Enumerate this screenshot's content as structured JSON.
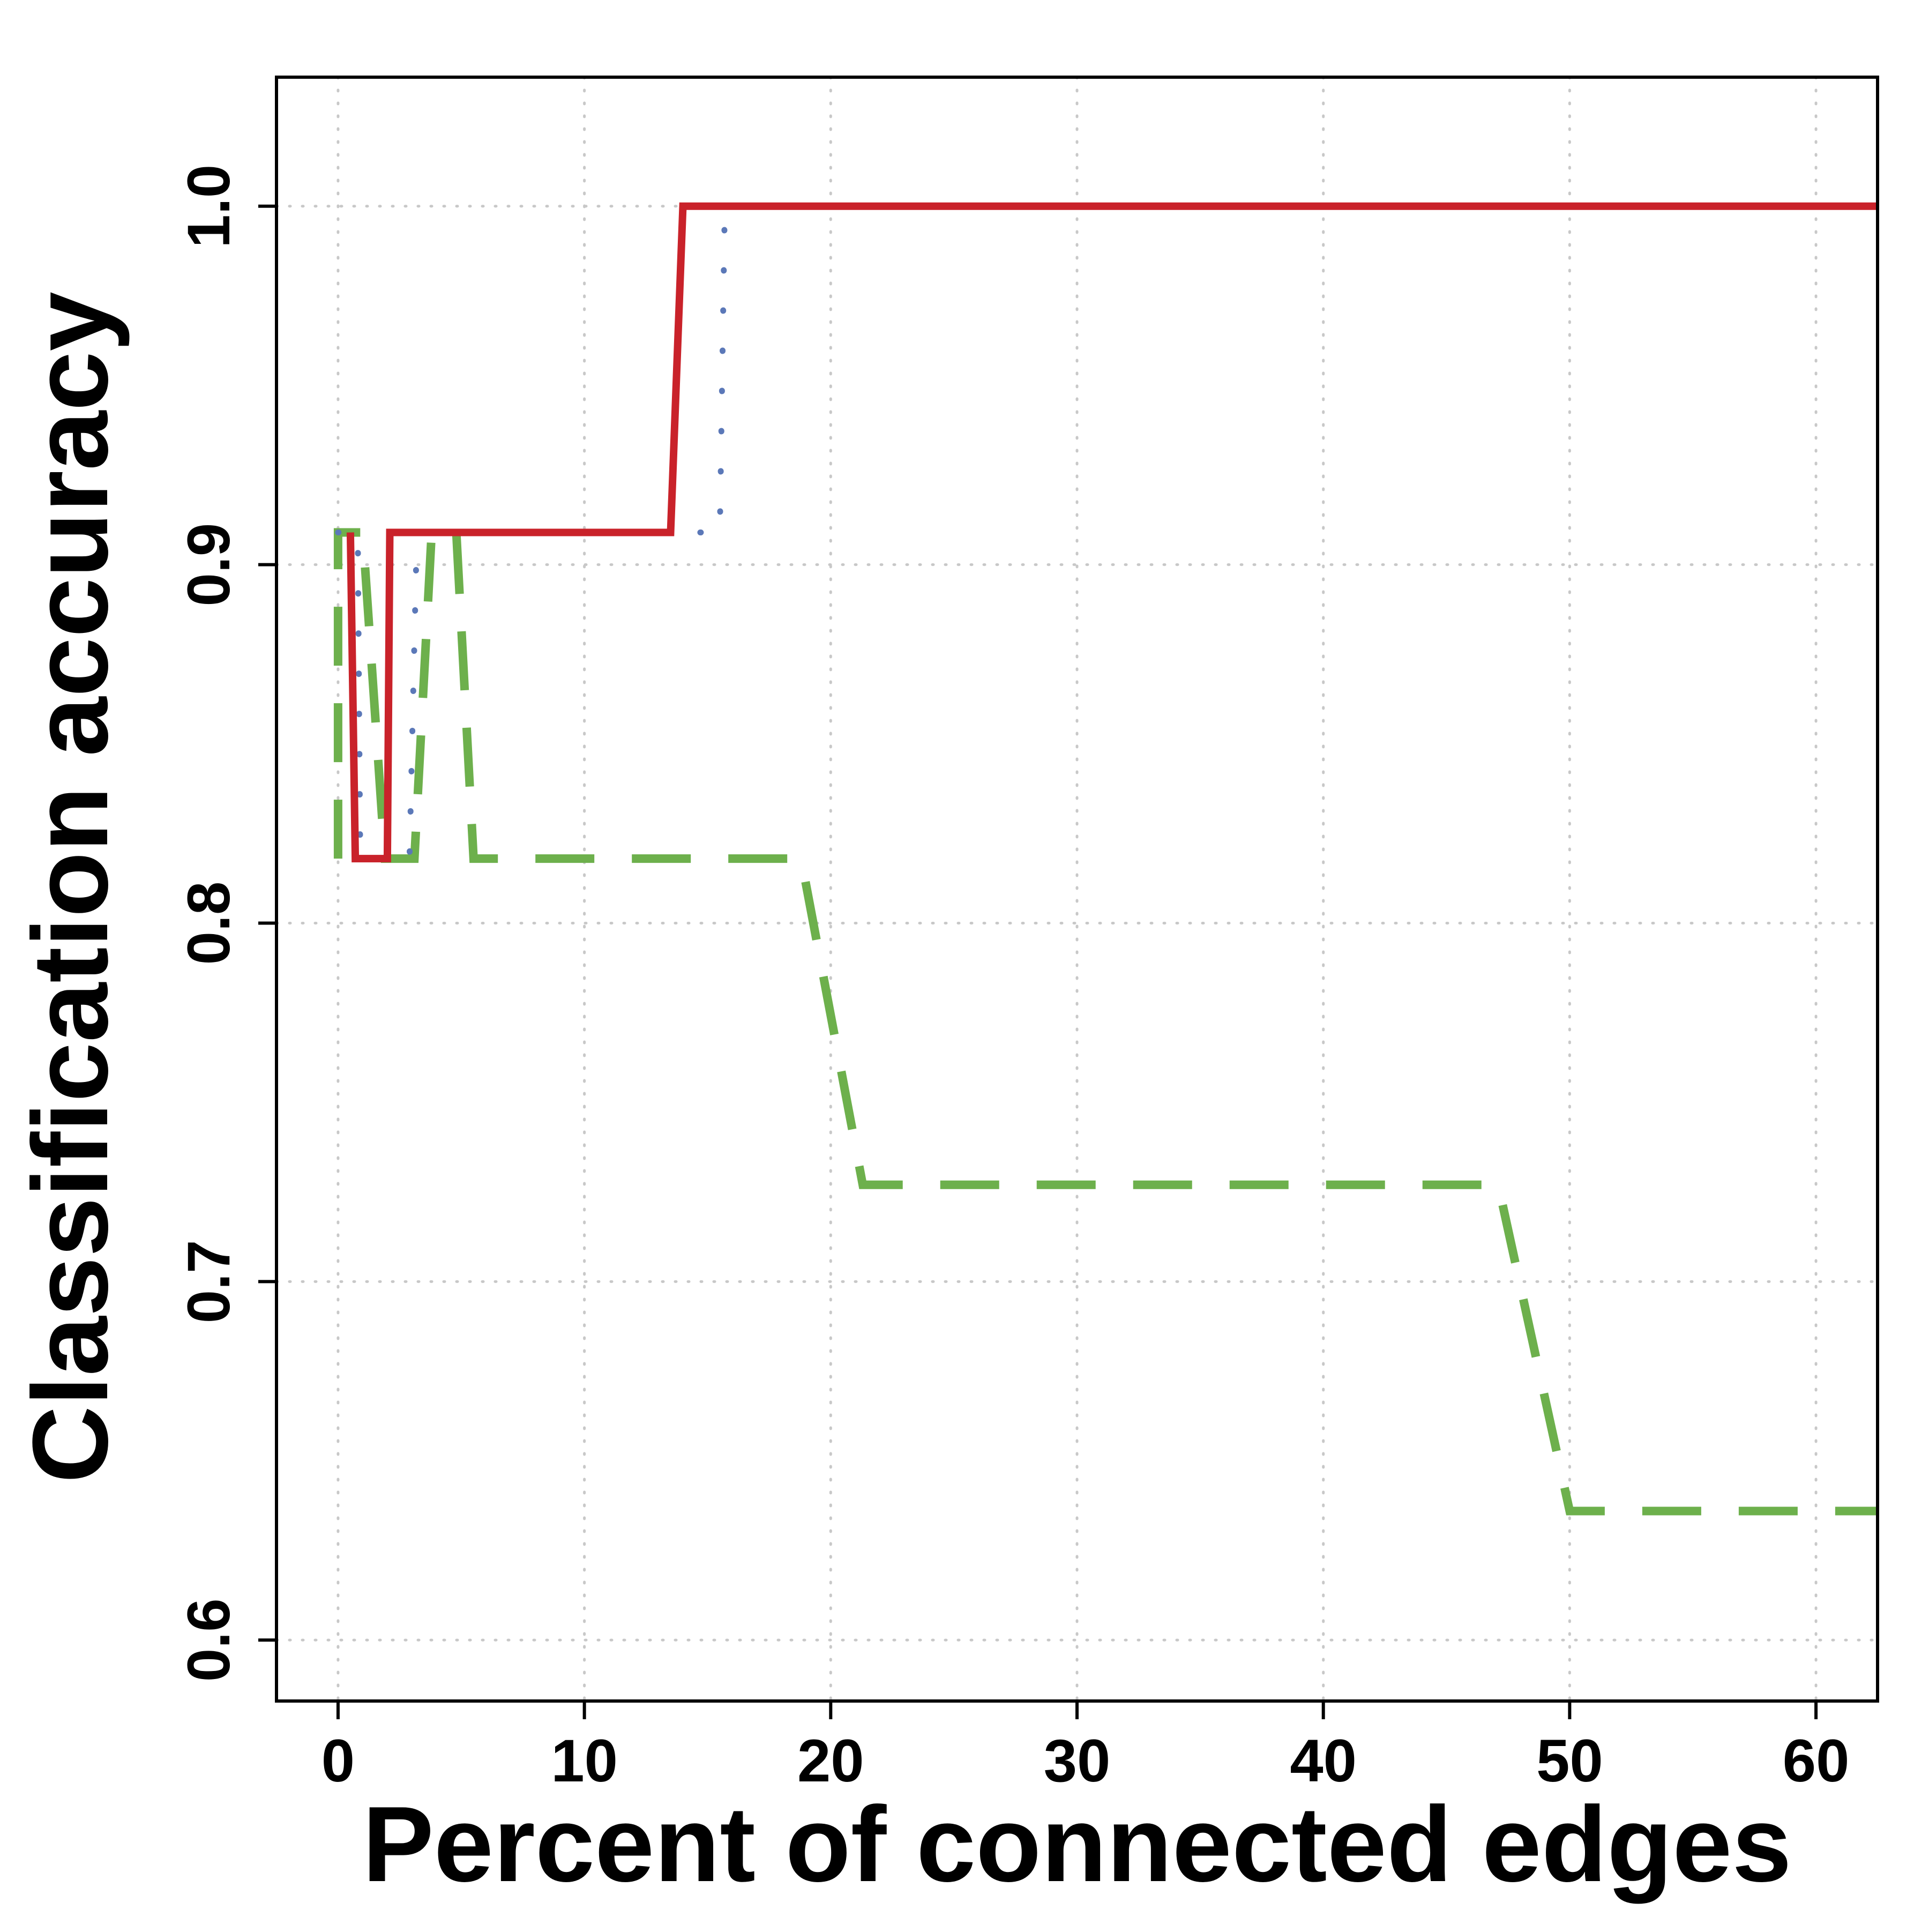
{
  "chart_data": {
    "type": "line",
    "title": "",
    "xlabel": "Percent of connected edges",
    "ylabel": "Classification accuracy",
    "xlim": [
      -2.5,
      62.5
    ],
    "ylim": [
      0.583,
      1.036
    ],
    "xticks": [
      0,
      10,
      20,
      30,
      40,
      50,
      60
    ],
    "yticks": [
      0.6,
      0.7,
      0.8,
      0.9,
      1.0
    ],
    "xtick_labels": [
      "0",
      "10",
      "20",
      "30",
      "40",
      "50",
      "60"
    ],
    "ytick_labels": [
      "0.6",
      "0.7",
      "0.8",
      "0.9",
      "1.0"
    ],
    "grid": true,
    "series": [
      {
        "color": "#c9222a",
        "style": "solid",
        "points": [
          [
            0.5,
            0.909
          ],
          [
            0.7,
            0.818
          ],
          [
            2.0,
            0.818
          ],
          [
            2.1,
            0.909
          ],
          [
            13.5,
            0.909
          ],
          [
            14.0,
            1.0
          ],
          [
            62.5,
            1.0
          ]
        ]
      },
      {
        "color": "#5b78b8",
        "style": "dotted",
        "points": [
          [
            0.0,
            0.909
          ],
          [
            0.8,
            0.909
          ],
          [
            0.9,
            0.818
          ],
          [
            2.9,
            0.818
          ],
          [
            3.2,
            0.909
          ],
          [
            15.5,
            0.909
          ],
          [
            15.7,
            1.0
          ]
        ]
      },
      {
        "color": "#6db04c",
        "style": "dashed",
        "points": [
          [
            0.0,
            0.818
          ],
          [
            0.0,
            0.909
          ],
          [
            1.0,
            0.909
          ],
          [
            1.9,
            0.818
          ],
          [
            3.1,
            0.818
          ],
          [
            3.8,
            0.909
          ],
          [
            4.8,
            0.909
          ],
          [
            5.5,
            0.818
          ],
          [
            18.8,
            0.818
          ],
          [
            21.3,
            0.727
          ],
          [
            47.1,
            0.727
          ],
          [
            50.0,
            0.636
          ],
          [
            62.5,
            0.636
          ]
        ]
      }
    ]
  }
}
